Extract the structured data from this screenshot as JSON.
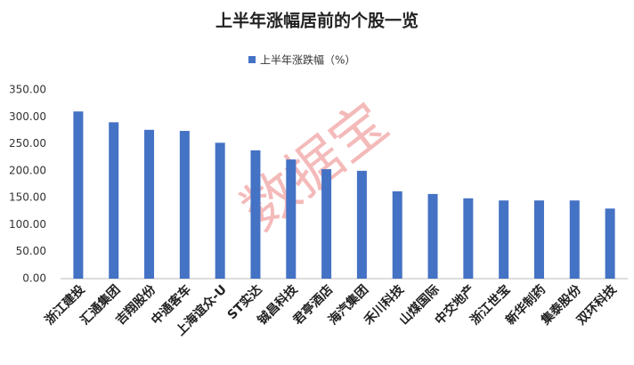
{
  "chart_data": {
    "type": "bar",
    "title": "上半年涨幅居前的个股一览",
    "watermark": "数据宝",
    "categories": [
      "浙江建投",
      "汇通集团",
      "吉翔股份",
      "中通客车",
      "上海谊众-U",
      "ST实达",
      "铖昌科技",
      "君亭酒店",
      "海汽集团",
      "禾川科技",
      "山煤国际",
      "中交地产",
      "浙江世宝",
      "新华制药",
      "集泰股份",
      "双环科技"
    ],
    "series": [
      {
        "name": "上半年涨跌幅（%）",
        "color": "#4472c4",
        "values": [
          310,
          290,
          276,
          274,
          252,
          238,
          221,
          203,
          200,
          162,
          157,
          149,
          145,
          145,
          145,
          130
        ]
      }
    ],
    "ylim": [
      0,
      350
    ],
    "yticks": [
      {
        "value": 0,
        "label": "0.00"
      },
      {
        "value": 50,
        "label": "50.00"
      },
      {
        "value": 100,
        "label": "100.00"
      },
      {
        "value": 150,
        "label": "150.00"
      },
      {
        "value": 200,
        "label": "200.00"
      },
      {
        "value": 250,
        "label": "250.00"
      },
      {
        "value": 300,
        "label": "300.00"
      },
      {
        "value": 350,
        "label": "350.00"
      }
    ],
    "grid": false
  }
}
